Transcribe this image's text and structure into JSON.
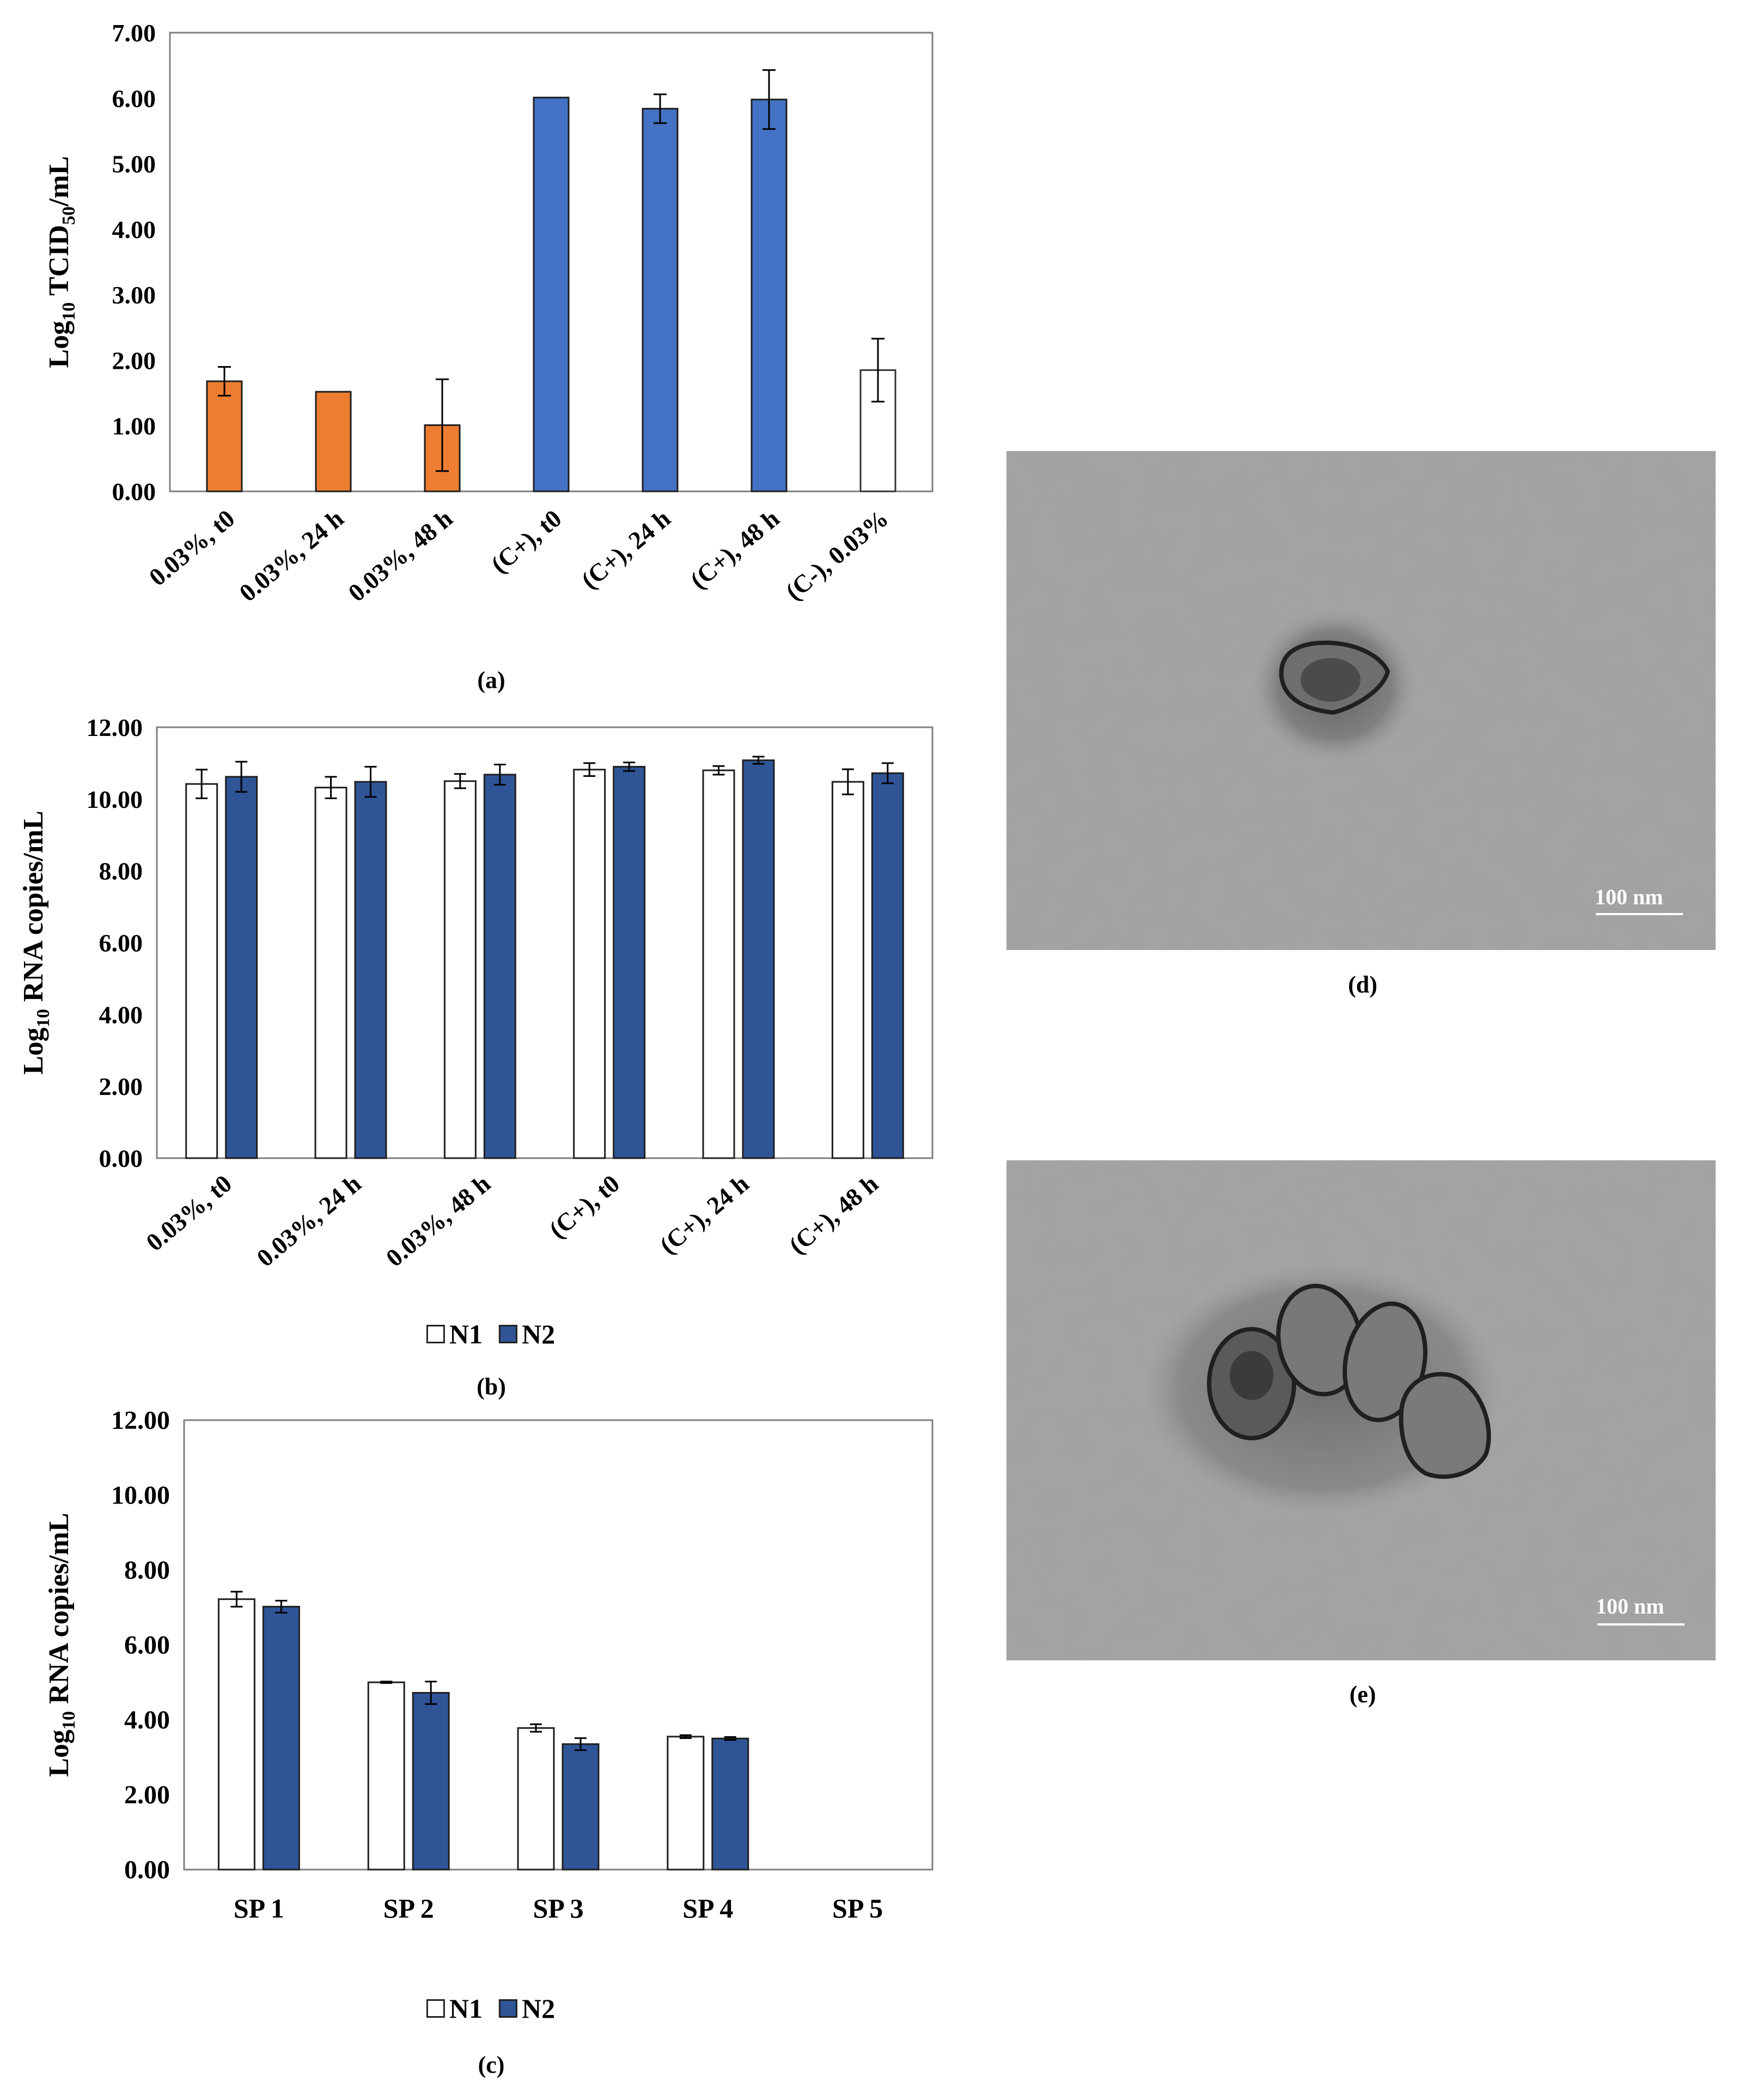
{
  "figure": {
    "captions": {
      "a": "(a)",
      "b": "(b)",
      "c": "(c)",
      "d": "(d)",
      "e": "(e)"
    },
    "tem": {
      "d_scale": "100 nm",
      "e_scale": "100 nm"
    }
  },
  "chart_data": [
    {
      "id": "a",
      "type": "bar",
      "ylabel_main": "Log",
      "ylabel_sub": "10",
      "ylabel_mid": " TCID",
      "ylabel_sub2": "50",
      "ylabel_end": "/mL",
      "ylim": [
        0,
        7
      ],
      "yticks": [
        "0.00",
        "1.00",
        "2.00",
        "3.00",
        "4.00",
        "5.00",
        "6.00",
        "7.00"
      ],
      "categories": [
        "0.03%, t0",
        "0.03%, 24 h",
        "0.03%, 48 h",
        "(C+), t0",
        "(C+), 24 h",
        "(C+), 48 h",
        "(C-), 0.03%"
      ],
      "values": [
        1.68,
        1.52,
        1.01,
        6.01,
        5.84,
        5.98,
        1.85
      ],
      "errors": [
        0.22,
        0.0,
        0.7,
        0.0,
        0.22,
        0.45,
        0.48
      ],
      "colors": [
        "#ed7d31",
        "#ed7d31",
        "#ed7d31",
        "#4472c4",
        "#4472c4",
        "#4472c4",
        "#ffffff"
      ],
      "grid": false
    },
    {
      "id": "b",
      "type": "bar",
      "ylabel_main": "Log",
      "ylabel_sub": "10",
      "ylabel_end": " RNA copies/mL",
      "ylim": [
        0,
        12
      ],
      "yticks": [
        "0.00",
        "2.00",
        "4.00",
        "6.00",
        "8.00",
        "10.00",
        "12.00"
      ],
      "categories": [
        "0.03%, t0",
        "0.03%, 24 h",
        "0.03%, 48 h",
        "(C+), t0",
        "(C+), 24 h",
        "(C+), 48 h"
      ],
      "series": [
        {
          "name": "N1",
          "color": "#ffffff",
          "values": [
            10.42,
            10.32,
            10.5,
            10.82,
            10.8,
            10.48
          ],
          "errors": [
            0.4,
            0.3,
            0.2,
            0.18,
            0.12,
            0.35
          ]
        },
        {
          "name": "N2",
          "color": "#2f5597",
          "values": [
            10.62,
            10.48,
            10.68,
            10.9,
            11.08,
            10.72
          ],
          "errors": [
            0.42,
            0.42,
            0.28,
            0.12,
            0.1,
            0.28
          ]
        }
      ],
      "legend": "bottom",
      "grid": false
    },
    {
      "id": "c",
      "type": "bar",
      "ylabel_main": "Log",
      "ylabel_sub": "10",
      "ylabel_end": " RNA copies/mL",
      "ylim": [
        0,
        12
      ],
      "yticks": [
        "0.00",
        "2.00",
        "4.00",
        "6.00",
        "8.00",
        "10.00",
        "12.00"
      ],
      "categories": [
        "SP 1",
        "SP 2",
        "SP 3",
        "SP 4",
        "SP 5"
      ],
      "series": [
        {
          "name": "N1",
          "color": "#ffffff",
          "values": [
            7.22,
            5.0,
            3.78,
            3.55,
            null
          ],
          "errors": [
            0.2,
            0.02,
            0.1,
            0.04,
            0
          ]
        },
        {
          "name": "N2",
          "color": "#2f5597",
          "values": [
            7.02,
            4.72,
            3.35,
            3.5,
            null
          ],
          "errors": [
            0.16,
            0.3,
            0.16,
            0.04,
            0
          ]
        }
      ],
      "legend": "bottom",
      "grid": false
    }
  ]
}
